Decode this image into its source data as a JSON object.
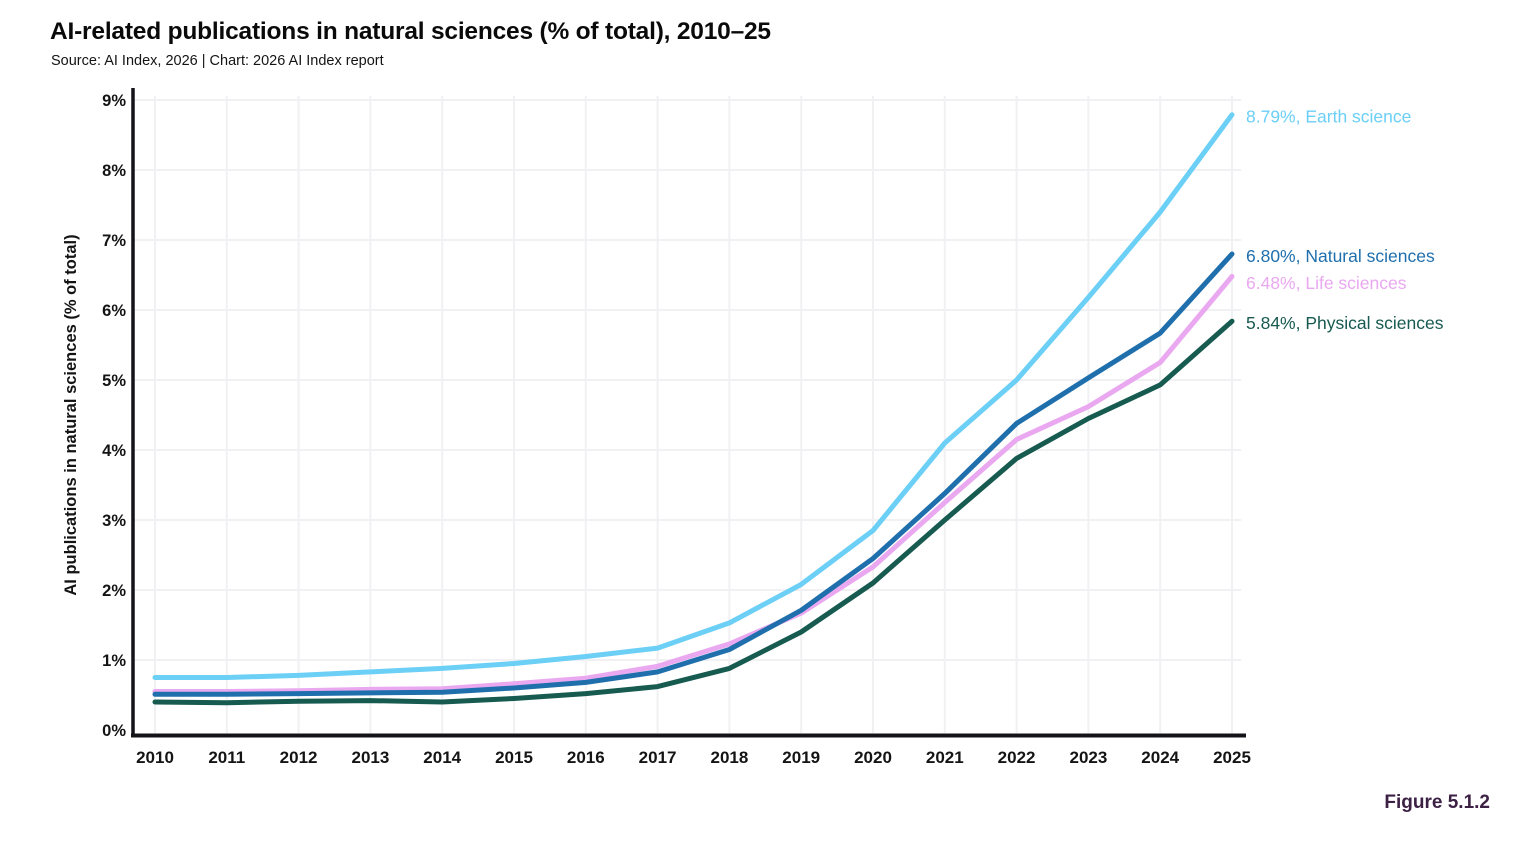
{
  "header": {
    "title": "AI-related publications in natural sciences (% of total), 2010–25",
    "source": "Source: AI Index, 2026 | Chart: 2026 AI Index report"
  },
  "figure_label": "Figure 5.1.2",
  "colors": {
    "earth_science": "#6BCFF6",
    "natural_sciences": "#1F6FAD",
    "life_sciences": "#E9A8F0",
    "physical_sciences": "#165A50",
    "grid": "#F1F1F3",
    "axis": "#141418",
    "figure_label": "#3C2144"
  },
  "chart_data": {
    "type": "line",
    "title": "AI-related publications in natural sciences (% of total), 2010–25",
    "xlabel": "",
    "ylabel": "AI publications in natural sciences (% of total)",
    "ylim": [
      0,
      9
    ],
    "grid": true,
    "legend_position": "right-end-labels",
    "x": [
      "2010",
      "2011",
      "2012",
      "2013",
      "2014",
      "2015",
      "2016",
      "2017",
      "2018",
      "2019",
      "2020",
      "2021",
      "2022",
      "2023",
      "2024",
      "2025"
    ],
    "yticks": [
      "0%",
      "1%",
      "2%",
      "3%",
      "4%",
      "5%",
      "6%",
      "7%",
      "8%",
      "9%"
    ],
    "series": [
      {
        "name": "Earth science",
        "slug": "earth-science",
        "color": "#6BCFF6",
        "end_label": "8.79%, Earth science",
        "end_value": 8.79,
        "values": [
          0.75,
          0.75,
          0.78,
          0.83,
          0.88,
          0.95,
          1.05,
          1.17,
          1.53,
          2.08,
          2.85,
          4.1,
          5.0,
          6.18,
          7.4,
          8.79
        ]
      },
      {
        "name": "Natural sciences",
        "slug": "natural-sciences",
        "color": "#1F6FAD",
        "end_label": "6.80%, Natural sciences",
        "end_value": 6.8,
        "values": [
          0.51,
          0.51,
          0.52,
          0.53,
          0.54,
          0.6,
          0.68,
          0.83,
          1.15,
          1.71,
          2.45,
          3.38,
          4.38,
          5.03,
          5.67,
          6.8
        ]
      },
      {
        "name": "Life sciences",
        "slug": "life-sciences",
        "color": "#E9A8F0",
        "end_label": "6.48%, Life sciences",
        "end_value": 6.48,
        "values": [
          0.55,
          0.55,
          0.56,
          0.58,
          0.59,
          0.66,
          0.74,
          0.91,
          1.23,
          1.67,
          2.33,
          3.25,
          4.15,
          4.62,
          5.25,
          6.48
        ]
      },
      {
        "name": "Physical sciences",
        "slug": "physical-sciences",
        "color": "#165A50",
        "end_label": "5.84%, Physical sciences",
        "end_value": 5.84,
        "values": [
          0.4,
          0.39,
          0.41,
          0.42,
          0.4,
          0.45,
          0.52,
          0.62,
          0.88,
          1.4,
          2.1,
          3.0,
          3.88,
          4.45,
          4.93,
          5.84
        ]
      }
    ]
  }
}
